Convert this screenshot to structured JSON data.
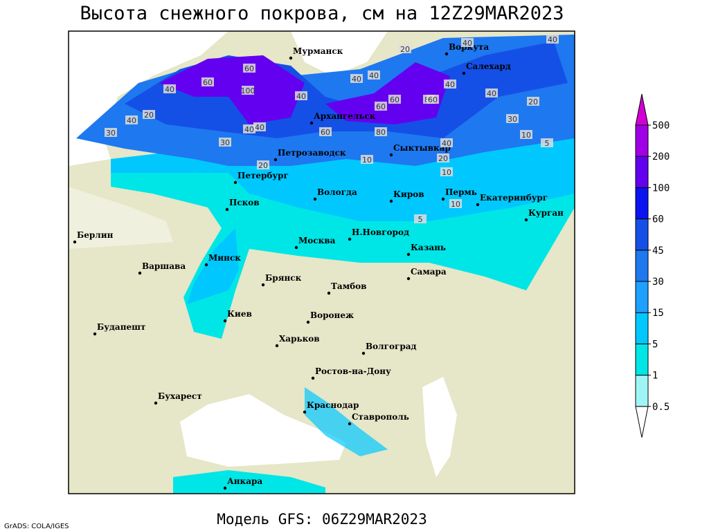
{
  "title": "Высота снежного покрова, см на 12Z29MAR2023",
  "footer": "Модель GFS: 06Z29MAR2023",
  "credit": "GrADS: COLA/IGES",
  "colorbar": {
    "levels": [
      0.5,
      1,
      5,
      15,
      30,
      45,
      60,
      100,
      200,
      500
    ],
    "colors": [
      "#ffffff",
      "#9ff5f5",
      "#00e6e6",
      "#00c8ff",
      "#1ea0ff",
      "#1e78f0",
      "#1450e6",
      "#0a14f0",
      "#6400f0",
      "#a000e6",
      "#d200d2"
    ]
  },
  "cities": [
    "Мурманск",
    "Воркута",
    "Салехард",
    "Архангельск",
    "Петрозаводск",
    "Сыктывкар",
    "Петербург",
    "Вологда",
    "Киров",
    "Пермь",
    "Екатеринбург",
    "Курган",
    "Псков",
    "Берлин",
    "Н.Новгород",
    "Москва",
    "Казань",
    "Минск",
    "Варшава",
    "Самара",
    "Брянск",
    "Тамбов",
    "Киев",
    "Воронеж",
    "Будапешт",
    "Харьков",
    "Волгоград",
    "Ростов-на-Дону",
    "Бухарест",
    "Краснодар",
    "Ставрополь",
    "Анкара"
  ],
  "contour_labels": [
    40,
    20,
    40,
    40,
    60,
    80,
    60,
    100,
    60,
    40,
    40,
    20,
    40,
    40,
    30,
    40,
    60,
    60,
    60,
    40,
    40,
    20,
    40,
    30,
    20,
    10,
    5,
    10,
    5,
    10,
    20,
    30,
    40,
    80,
    10
  ]
}
